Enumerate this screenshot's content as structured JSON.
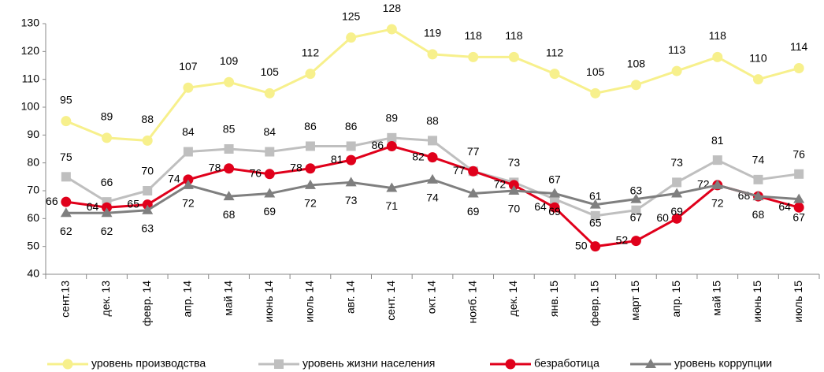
{
  "chart_data": {
    "type": "line",
    "categories": [
      "сент.13",
      "дек. 13",
      "февр. 14",
      "апр. 14",
      "май 14",
      "июнь 14",
      "июль 14",
      "авг. 14",
      "сент. 14",
      "окт. 14",
      "нояб. 14",
      "дек. 14",
      "янв. 15",
      "февр. 15",
      "март 15",
      "апр. 15",
      "май 15",
      "июнь 15",
      "июль 15"
    ],
    "series": [
      {
        "name": "уровень производства",
        "color": "#f7f08c",
        "marker": "circle",
        "values": [
          95,
          89,
          88,
          107,
          109,
          105,
          112,
          125,
          128,
          119,
          118,
          118,
          112,
          105,
          108,
          113,
          118,
          110,
          114
        ]
      },
      {
        "name": "уровень жизни населения",
        "color": "#bfbfbf",
        "marker": "square",
        "values": [
          75,
          66,
          70,
          84,
          85,
          84,
          86,
          86,
          89,
          88,
          77,
          73,
          67,
          61,
          63,
          73,
          81,
          74,
          76
        ]
      },
      {
        "name": "безработица",
        "color": "#e0001b",
        "marker": "circle",
        "values": [
          66,
          64,
          65,
          74,
          78,
          76,
          78,
          81,
          86,
          82,
          77,
          72,
          64,
          50,
          52,
          60,
          72,
          68,
          64
        ]
      },
      {
        "name": "уровень коррупции",
        "color": "#7f7f7f",
        "marker": "triangle",
        "values": [
          62,
          62,
          63,
          72,
          68,
          69,
          72,
          73,
          71,
          74,
          69,
          70,
          69,
          65,
          67,
          69,
          72,
          68,
          67
        ]
      }
    ],
    "ylim": [
      40,
      130
    ],
    "yticks": [
      40,
      50,
      60,
      70,
      80,
      90,
      100,
      110,
      120,
      130
    ],
    "grid": false,
    "legend": "bottom"
  }
}
